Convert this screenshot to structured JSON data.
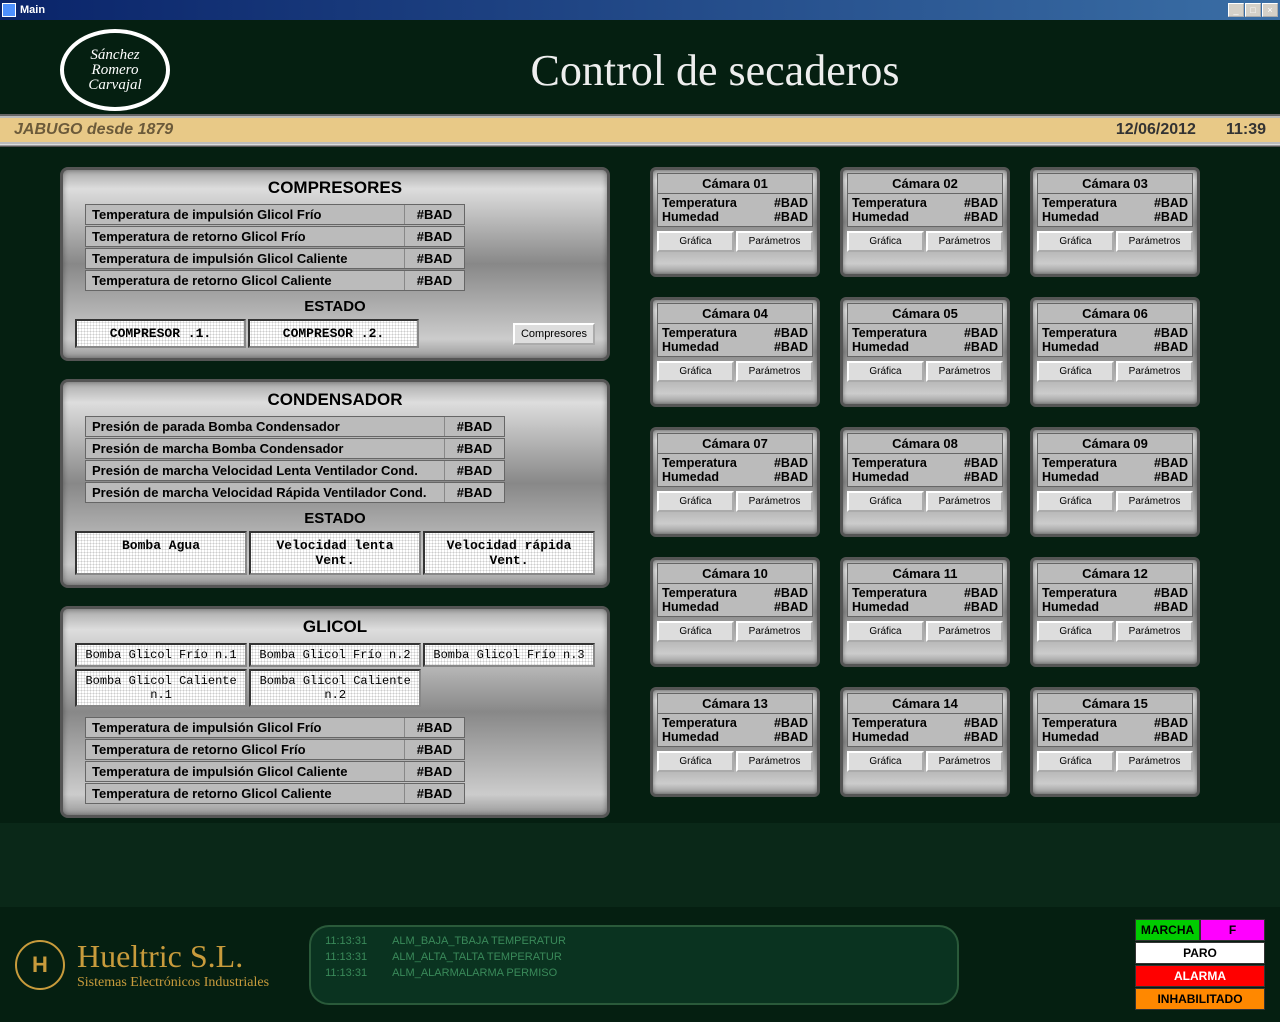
{
  "window": {
    "title": "Main"
  },
  "header": {
    "logo_line1": "Sánchez",
    "logo_line2": "Romero",
    "logo_line3": "Carvajal",
    "title": "Control de secaderos"
  },
  "datebar": {
    "text": "JABUGO desde 1879",
    "date": "12/06/2012",
    "time": "11:39"
  },
  "compresores": {
    "title": "COMPRESORES",
    "rows": [
      {
        "label": "Temperatura de impulsión Glicol Frío",
        "value": "#BAD"
      },
      {
        "label": "Temperatura de retorno Glicol Frío",
        "value": "#BAD"
      },
      {
        "label": "Temperatura de impulsión Glicol Caliente",
        "value": "#BAD"
      },
      {
        "label": "Temperatura de retorno Glicol Caliente",
        "value": "#BAD"
      }
    ],
    "estado_label": "ESTADO",
    "comp1": "COMPRESOR .1.",
    "comp2": "COMPRESOR .2.",
    "button": "Compresores"
  },
  "condensador": {
    "title": "CONDENSADOR",
    "rows": [
      {
        "label": "Presión de parada Bomba Condensador",
        "value": "#BAD"
      },
      {
        "label": "Presión de marcha Bomba Condensador",
        "value": "#BAD"
      },
      {
        "label": "Presión de marcha Velocidad Lenta Ventilador Cond.",
        "value": "#BAD"
      },
      {
        "label": "Presión de marcha Velocidad Rápida Ventilador Cond.",
        "value": "#BAD"
      }
    ],
    "estado_label": "ESTADO",
    "s1": "Bomba Agua",
    "s2": "Velocidad lenta Vent.",
    "s3": "Velocidad rápida Vent."
  },
  "glicol": {
    "title": "GLICOL",
    "pumps_row1": [
      "Bomba Glicol Frío n.1",
      "Bomba Glicol Frío n.2",
      "Bomba Glicol Frío n.3"
    ],
    "pumps_row2": [
      "Bomba Glicol Caliente n.1",
      "Bomba Glicol Caliente n.2"
    ],
    "rows": [
      {
        "label": "Temperatura de impulsión Glicol Frío",
        "value": "#BAD"
      },
      {
        "label": "Temperatura de retorno Glicol Frío",
        "value": "#BAD"
      },
      {
        "label": "Temperatura de impulsión Glicol Caliente",
        "value": "#BAD"
      },
      {
        "label": "Temperatura de retorno Glicol Caliente",
        "value": "#BAD"
      }
    ]
  },
  "camara_labels": {
    "temp": "Temperatura",
    "hum": "Humedad",
    "grafica": "Gráfica",
    "parametros": "Parámetros"
  },
  "camaras": [
    {
      "title": "Cámara  01",
      "temp": "#BAD",
      "hum": "#BAD"
    },
    {
      "title": "Cámara  02",
      "temp": "#BAD",
      "hum": "#BAD"
    },
    {
      "title": "Cámara  03",
      "temp": "#BAD",
      "hum": "#BAD"
    },
    {
      "title": "Cámara  04",
      "temp": "#BAD",
      "hum": "#BAD"
    },
    {
      "title": "Cámara  05",
      "temp": "#BAD",
      "hum": "#BAD"
    },
    {
      "title": "Cámara  06",
      "temp": "#BAD",
      "hum": "#BAD"
    },
    {
      "title": "Cámara  07",
      "temp": "#BAD",
      "hum": "#BAD"
    },
    {
      "title": "Cámara  08",
      "temp": "#BAD",
      "hum": "#BAD"
    },
    {
      "title": "Cámara  09",
      "temp": "#BAD",
      "hum": "#BAD"
    },
    {
      "title": "Cámara  10",
      "temp": "#BAD",
      "hum": "#BAD"
    },
    {
      "title": "Cámara  11",
      "temp": "#BAD",
      "hum": "#BAD"
    },
    {
      "title": "Cámara  12",
      "temp": "#BAD",
      "hum": "#BAD"
    },
    {
      "title": "Cámara  13",
      "temp": "#BAD",
      "hum": "#BAD"
    },
    {
      "title": "Cámara  14",
      "temp": "#BAD",
      "hum": "#BAD"
    },
    {
      "title": "Cámara  15",
      "temp": "#BAD",
      "hum": "#BAD"
    }
  ],
  "footer": {
    "company": "Hueltric S.L.",
    "subtitle": "Sistemas Electrónicos Industriales",
    "alarms": [
      {
        "time": "11:13:31",
        "text": "ALM_BAJA_TBAJA TEMPERATUR"
      },
      {
        "time": "11:13:31",
        "text": "ALM_ALTA_TALTA TEMPERATUR"
      },
      {
        "time": "11:13:31",
        "text": "ALM_ALARMALARMA PERMISO"
      }
    ],
    "legend": {
      "marcha": "MARCHA",
      "f": "F",
      "paro": "PARO",
      "alarma": "ALARMA",
      "inhab": "INHABILITADO"
    }
  }
}
